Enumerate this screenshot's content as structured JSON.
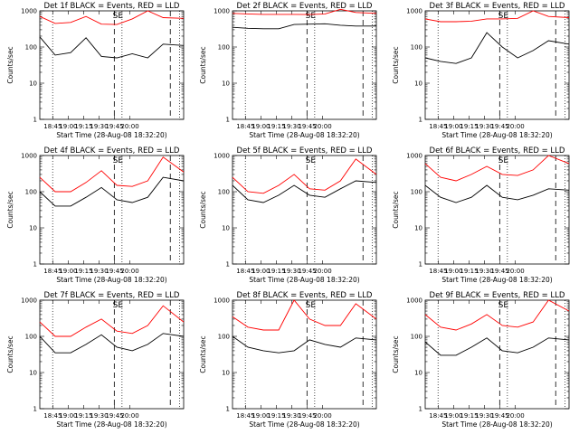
{
  "chart_data": [
    {
      "type": "line",
      "title": "Det 1f BLACK = Events, RED = LLD",
      "ylabel": "Counts/sec",
      "xlabel": "Start Time (28-Aug-08 18:32:20)",
      "y_scale": "log",
      "ylim": [
        1,
        1000
      ],
      "yticks": [
        "1",
        "10",
        "100",
        "1000"
      ],
      "xticks": [
        "18:45",
        "19:00",
        "19:15",
        "19:30",
        "19:45",
        "20:00"
      ],
      "markers": [
        "SE"
      ],
      "series": [
        {
          "color": "#000000",
          "x": [
            0,
            15,
            30,
            45,
            60,
            75,
            90,
            105,
            120,
            140
          ],
          "values": [
            190,
            60,
            70,
            180,
            55,
            50,
            65,
            50,
            120,
            110
          ]
        },
        {
          "color": "#ff0000",
          "x": [
            0,
            15,
            30,
            45,
            60,
            75,
            90,
            105,
            120,
            140
          ],
          "values": [
            700,
            450,
            480,
            700,
            430,
            420,
            600,
            1000,
            650,
            620
          ]
        }
      ]
    },
    {
      "type": "line",
      "title": "Det 2f BLACK = Events, RED = LLD",
      "ylabel": "Counts/sec",
      "xlabel": "Start Time (28-Aug-08 18:32:20)",
      "y_scale": "log",
      "ylim": [
        1,
        1000
      ],
      "yticks": [
        "1",
        "10",
        "100",
        "1000"
      ],
      "xticks": [
        "18:45",
        "19:00",
        "19:15",
        "19:30",
        "19:45",
        "20:00"
      ],
      "markers": [
        "SE"
      ],
      "series": [
        {
          "color": "#000000",
          "x": [
            0,
            15,
            30,
            45,
            60,
            75,
            90,
            105,
            120,
            140
          ],
          "values": [
            350,
            330,
            320,
            320,
            420,
            430,
            440,
            400,
            380,
            380
          ]
        },
        {
          "color": "#ff0000",
          "x": [
            0,
            15,
            30,
            45,
            60,
            75,
            90,
            105,
            120,
            140
          ],
          "values": [
            850,
            820,
            800,
            800,
            800,
            790,
            820,
            1100,
            900,
            850
          ]
        }
      ]
    },
    {
      "type": "line",
      "title": "Det 3f BLACK = Events, RED = LLD",
      "ylabel": "Counts/sec",
      "xlabel": "Start Time (28-Aug-08 18:32:20)",
      "y_scale": "log",
      "ylim": [
        1,
        1000
      ],
      "yticks": [
        "1",
        "10",
        "100",
        "1000"
      ],
      "xticks": [
        "18:45",
        "19:00",
        "19:15",
        "19:30",
        "19:45",
        "20:00"
      ],
      "markers": [
        "SE"
      ],
      "series": [
        {
          "color": "#000000",
          "x": [
            0,
            15,
            30,
            45,
            60,
            75,
            90,
            105,
            120,
            140
          ],
          "values": [
            50,
            40,
            35,
            50,
            250,
            100,
            50,
            80,
            150,
            120
          ]
        },
        {
          "color": "#ff0000",
          "x": [
            0,
            15,
            30,
            45,
            60,
            75,
            90,
            105,
            120,
            140
          ],
          "values": [
            600,
            500,
            500,
            520,
            600,
            600,
            620,
            1000,
            700,
            650
          ]
        }
      ]
    },
    {
      "type": "line",
      "title": "Det 4f BLACK = Events, RED = LLD",
      "ylabel": "Counts/sec",
      "xlabel": "Start Time (28-Aug-08 18:32:20)",
      "y_scale": "log",
      "ylim": [
        1,
        1000
      ],
      "yticks": [
        "1",
        "10",
        "100",
        "1000"
      ],
      "xticks": [
        "18:45",
        "19:00",
        "19:15",
        "19:30",
        "19:45",
        "20:00"
      ],
      "markers": [
        "SE"
      ],
      "series": [
        {
          "color": "#000000",
          "x": [
            0,
            15,
            30,
            45,
            60,
            75,
            90,
            105,
            120,
            140
          ],
          "values": [
            100,
            40,
            40,
            70,
            130,
            60,
            50,
            70,
            250,
            200
          ]
        },
        {
          "color": "#ff0000",
          "x": [
            0,
            15,
            30,
            45,
            60,
            75,
            90,
            105,
            120,
            140
          ],
          "values": [
            250,
            100,
            100,
            180,
            380,
            150,
            140,
            200,
            900,
            350
          ]
        }
      ]
    },
    {
      "type": "line",
      "title": "Det 5f BLACK = Events, RED = LLD",
      "ylabel": "Counts/sec",
      "xlabel": "Start Time (28-Aug-08 18:32:20)",
      "y_scale": "log",
      "ylim": [
        1,
        1000
      ],
      "yticks": [
        "1",
        "10",
        "100",
        "1000"
      ],
      "xticks": [
        "18:45",
        "19:00",
        "19:15",
        "19:30",
        "19:45",
        "20:00"
      ],
      "markers": [
        "SE"
      ],
      "series": [
        {
          "color": "#000000",
          "x": [
            0,
            15,
            30,
            45,
            60,
            75,
            90,
            105,
            120,
            140
          ],
          "values": [
            150,
            60,
            50,
            80,
            150,
            80,
            70,
            120,
            200,
            180
          ]
        },
        {
          "color": "#ff0000",
          "x": [
            0,
            15,
            30,
            45,
            60,
            75,
            90,
            105,
            120,
            140
          ],
          "values": [
            250,
            100,
            90,
            150,
            300,
            120,
            110,
            200,
            800,
            300
          ]
        }
      ]
    },
    {
      "type": "line",
      "title": "Det 6f BLACK = Events, RED = LLD",
      "ylabel": "Counts/sec",
      "xlabel": "Start Time (28-Aug-08 18:32:20)",
      "y_scale": "log",
      "ylim": [
        1,
        1000
      ],
      "yticks": [
        "1",
        "10",
        "100",
        "1000"
      ],
      "xticks": [
        "18:45",
        "19:00",
        "19:15",
        "19:30",
        "19:45",
        "20:00"
      ],
      "markers": [
        "SE"
      ],
      "series": [
        {
          "color": "#000000",
          "x": [
            0,
            15,
            30,
            45,
            60,
            75,
            90,
            105,
            120,
            140
          ],
          "values": [
            150,
            70,
            50,
            70,
            150,
            70,
            60,
            80,
            120,
            110
          ]
        },
        {
          "color": "#ff0000",
          "x": [
            0,
            15,
            30,
            45,
            60,
            75,
            90,
            105,
            120,
            140
          ],
          "values": [
            600,
            250,
            200,
            300,
            500,
            300,
            280,
            400,
            1000,
            600
          ]
        }
      ]
    },
    {
      "type": "line",
      "title": "Det 7f BLACK = Events, RED = LLD",
      "ylabel": "Counts/sec",
      "xlabel": "Start Time (28-Aug-08 18:32:20)",
      "y_scale": "log",
      "ylim": [
        1,
        1000
      ],
      "yticks": [
        "1",
        "10",
        "100",
        "1000"
      ],
      "xticks": [
        "18:45",
        "19:00",
        "19:15",
        "19:30",
        "19:45",
        "20:00"
      ],
      "markers": [
        "SE"
      ],
      "series": [
        {
          "color": "#000000",
          "x": [
            0,
            15,
            30,
            45,
            60,
            75,
            90,
            105,
            120,
            140
          ],
          "values": [
            100,
            35,
            35,
            60,
            110,
            50,
            40,
            60,
            120,
            100
          ]
        },
        {
          "color": "#ff0000",
          "x": [
            0,
            15,
            30,
            45,
            60,
            75,
            90,
            105,
            120,
            140
          ],
          "values": [
            250,
            100,
            100,
            180,
            300,
            140,
            120,
            200,
            700,
            250
          ]
        }
      ]
    },
    {
      "type": "line",
      "title": "Det 8f BLACK = Events, RED = LLD",
      "ylabel": "Counts/sec",
      "xlabel": "Start Time (28-Aug-08 18:32:20)",
      "y_scale": "log",
      "ylim": [
        1,
        1000
      ],
      "yticks": [
        "1",
        "10",
        "100",
        "1000"
      ],
      "xticks": [
        "18:45",
        "19:00",
        "19:15",
        "19:30",
        "19:45",
        "20:00"
      ],
      "markers": [
        "SE"
      ],
      "series": [
        {
          "color": "#000000",
          "x": [
            0,
            15,
            30,
            45,
            60,
            75,
            90,
            105,
            120,
            140
          ],
          "values": [
            100,
            50,
            40,
            35,
            40,
            80,
            60,
            50,
            90,
            80
          ]
        },
        {
          "color": "#ff0000",
          "x": [
            0,
            15,
            30,
            45,
            60,
            75,
            90,
            105,
            120,
            140
          ],
          "values": [
            350,
            180,
            150,
            150,
            1000,
            300,
            200,
            200,
            800,
            300
          ]
        }
      ]
    },
    {
      "type": "line",
      "title": "Det 9f BLACK = Events, RED = LLD",
      "ylabel": "Counts/sec",
      "xlabel": "Start Time (28-Aug-08 18:32:20)",
      "y_scale": "log",
      "ylim": [
        1,
        1000
      ],
      "yticks": [
        "1",
        "10",
        "100",
        "1000"
      ],
      "xticks": [
        "18:45",
        "19:00",
        "19:15",
        "19:30",
        "19:45",
        "20:00"
      ],
      "markers": [
        "SE"
      ],
      "series": [
        {
          "color": "#000000",
          "x": [
            0,
            15,
            30,
            45,
            60,
            75,
            90,
            105,
            120,
            140
          ],
          "values": [
            70,
            30,
            30,
            50,
            90,
            40,
            35,
            50,
            90,
            80
          ]
        },
        {
          "color": "#ff0000",
          "x": [
            0,
            15,
            30,
            45,
            60,
            75,
            90,
            105,
            120,
            140
          ],
          "values": [
            400,
            180,
            150,
            220,
            400,
            200,
            180,
            250,
            1000,
            500
          ]
        }
      ]
    }
  ]
}
